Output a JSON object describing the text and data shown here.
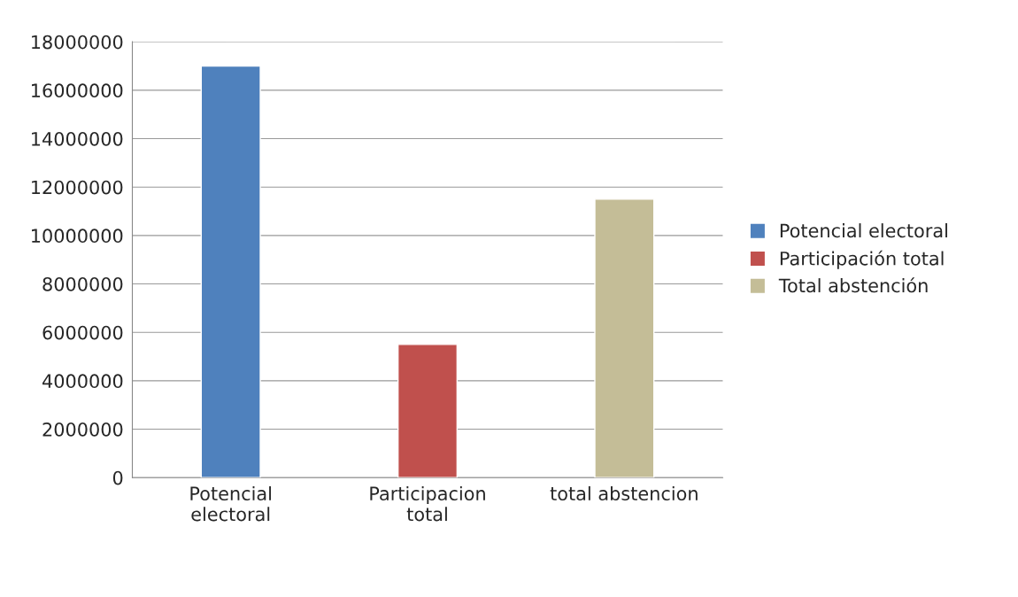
{
  "chart_data": {
    "type": "bar",
    "categories": [
      "Potencial\nelectoral",
      "Participacion\ntotal",
      "total abstencion"
    ],
    "series": [
      {
        "name": "Potencial electoral",
        "color": "#4f81bd",
        "values": [
          17000000,
          null,
          null
        ]
      },
      {
        "name": "Participación total",
        "color": "#c0504d",
        "values": [
          null,
          5500000,
          null
        ]
      },
      {
        "name": "Total abstención",
        "color": "#c4bd97",
        "values": [
          null,
          null,
          11500000
        ]
      }
    ],
    "ylim": [
      0,
      18000000
    ],
    "yticks": [
      0,
      2000000,
      4000000,
      6000000,
      8000000,
      10000000,
      12000000,
      14000000,
      16000000,
      18000000
    ],
    "grid": "y",
    "legend": "right"
  }
}
